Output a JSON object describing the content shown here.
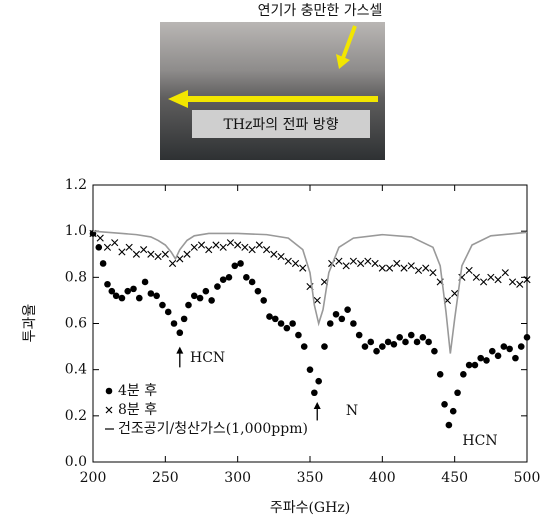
{
  "photo": {
    "caption": "연기가 충만한 가스셀",
    "label": "THz파의 전파 방향"
  },
  "chart_data": {
    "type": "scatter",
    "x_label": "주파수(GHz)",
    "y_label": "투과율",
    "xlim": [
      200,
      500
    ],
    "ylim": [
      0,
      1.2
    ],
    "xticks": [
      200,
      250,
      300,
      350,
      400,
      450,
      500
    ],
    "yticks": [
      {
        "value": 0,
        "label": "0.0"
      },
      0.2,
      0.4,
      0.6,
      0.8,
      {
        "value": 1,
        "label": "1.0"
      },
      1.2
    ],
    "annotations": [
      "HCN",
      "N",
      "HCN"
    ],
    "series": [
      {
        "name": "4분 후",
        "color": "#000000",
        "marker": "circle",
        "x": [
          200,
          204,
          207,
          210,
          213,
          216,
          220,
          224,
          228,
          232,
          236,
          240,
          244,
          248,
          252,
          256,
          260,
          263,
          266,
          270,
          274,
          278,
          282,
          286,
          290,
          294,
          298,
          302,
          306,
          310,
          314,
          318,
          322,
          326,
          330,
          334,
          338,
          342,
          346,
          350,
          353,
          356,
          360,
          364,
          368,
          372,
          376,
          380,
          384,
          388,
          392,
          396,
          400,
          404,
          408,
          412,
          416,
          420,
          424,
          428,
          432,
          436,
          440,
          443,
          446,
          449,
          452,
          456,
          460,
          464,
          468,
          472,
          476,
          480,
          484,
          488,
          492,
          496,
          500
        ],
        "values": [
          0.99,
          0.93,
          0.86,
          0.77,
          0.74,
          0.72,
          0.71,
          0.74,
          0.75,
          0.71,
          0.78,
          0.73,
          0.72,
          0.68,
          0.65,
          0.6,
          0.56,
          0.62,
          0.68,
          0.72,
          0.71,
          0.74,
          0.7,
          0.76,
          0.79,
          0.8,
          0.85,
          0.86,
          0.8,
          0.78,
          0.74,
          0.7,
          0.63,
          0.62,
          0.6,
          0.58,
          0.6,
          0.55,
          0.5,
          0.4,
          0.3,
          0.35,
          0.5,
          0.6,
          0.64,
          0.62,
          0.66,
          0.6,
          0.55,
          0.5,
          0.52,
          0.48,
          0.5,
          0.52,
          0.51,
          0.54,
          0.52,
          0.55,
          0.52,
          0.54,
          0.52,
          0.48,
          0.38,
          0.25,
          0.16,
          0.22,
          0.3,
          0.38,
          0.42,
          0.42,
          0.45,
          0.44,
          0.48,
          0.46,
          0.5,
          0.49,
          0.45,
          0.5,
          0.54
        ]
      },
      {
        "name": "8분 후",
        "color": "#000000",
        "marker": "x",
        "x": [
          200,
          205,
          210,
          215,
          220,
          225,
          230,
          235,
          240,
          245,
          250,
          255,
          260,
          265,
          270,
          275,
          280,
          285,
          290,
          295,
          300,
          305,
          310,
          315,
          320,
          325,
          330,
          335,
          340,
          345,
          350,
          355,
          360,
          365,
          370,
          375,
          380,
          385,
          390,
          395,
          400,
          405,
          410,
          415,
          420,
          425,
          430,
          435,
          440,
          445,
          450,
          455,
          460,
          465,
          470,
          475,
          480,
          485,
          490,
          495,
          500
        ],
        "values": [
          0.99,
          0.97,
          0.93,
          0.95,
          0.91,
          0.93,
          0.9,
          0.92,
          0.9,
          0.89,
          0.9,
          0.86,
          0.88,
          0.9,
          0.93,
          0.94,
          0.92,
          0.94,
          0.93,
          0.95,
          0.94,
          0.93,
          0.92,
          0.94,
          0.92,
          0.9,
          0.89,
          0.87,
          0.86,
          0.84,
          0.76,
          0.7,
          0.78,
          0.86,
          0.87,
          0.85,
          0.87,
          0.86,
          0.87,
          0.86,
          0.84,
          0.84,
          0.86,
          0.84,
          0.85,
          0.83,
          0.84,
          0.82,
          0.78,
          0.7,
          0.73,
          0.8,
          0.83,
          0.8,
          0.78,
          0.8,
          0.79,
          0.82,
          0.78,
          0.77,
          0.79
        ]
      },
      {
        "name": "건조공기/청산가스(1,000ppm)",
        "color": "#999999",
        "marker": "none",
        "x": [
          200,
          210,
          220,
          230,
          240,
          245,
          250,
          254,
          257,
          260,
          265,
          270,
          280,
          300,
          320,
          335,
          345,
          350,
          353,
          356,
          359,
          363,
          370,
          380,
          400,
          420,
          435,
          440,
          444,
          447,
          450,
          455,
          462,
          475,
          500
        ],
        "values": [
          1.0,
          0.995,
          0.99,
          0.985,
          0.975,
          0.96,
          0.94,
          0.91,
          0.88,
          0.92,
          0.96,
          0.98,
          0.99,
          0.99,
          0.985,
          0.97,
          0.92,
          0.82,
          0.68,
          0.6,
          0.66,
          0.82,
          0.93,
          0.97,
          0.985,
          0.975,
          0.93,
          0.85,
          0.65,
          0.47,
          0.62,
          0.85,
          0.94,
          0.98,
          0.995
        ]
      }
    ]
  }
}
